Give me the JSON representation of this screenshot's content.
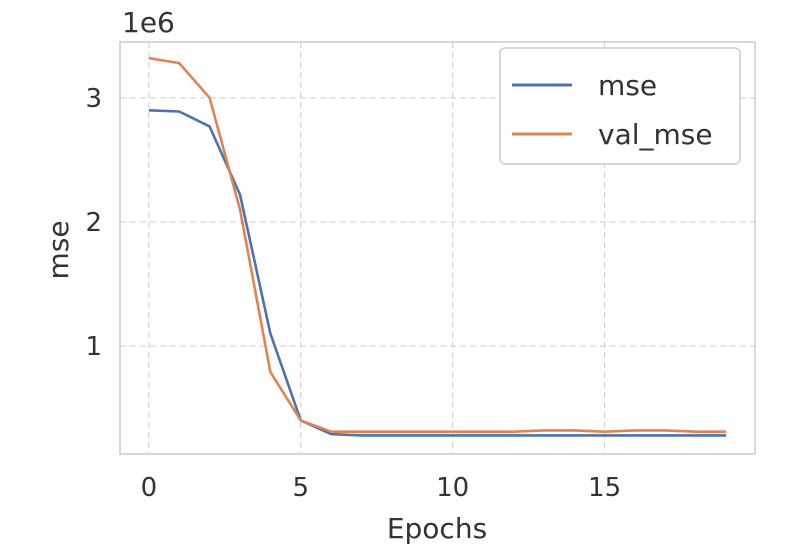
{
  "chart_data": {
    "type": "line",
    "title": "",
    "xlabel": "Epochs",
    "ylabel": "mse",
    "y_offset_label": "1e6",
    "xlim": [
      -0.95,
      19.95
    ],
    "ylim": [
      0.13,
      3.45
    ],
    "x_ticks": [
      0,
      5,
      10,
      15
    ],
    "y_ticks": [
      1,
      2,
      3
    ],
    "grid": true,
    "legend_position": "top-right",
    "x": [
      0,
      1,
      2,
      3,
      4,
      5,
      6,
      7,
      8,
      9,
      10,
      11,
      12,
      13,
      14,
      15,
      16,
      17,
      18,
      19
    ],
    "series": [
      {
        "name": "mse",
        "color": "#4c72b0",
        "values": [
          2.9,
          2.89,
          2.77,
          2.22,
          1.1,
          0.4,
          0.29,
          0.28,
          0.28,
          0.28,
          0.28,
          0.28,
          0.28,
          0.28,
          0.28,
          0.28,
          0.28,
          0.28,
          0.28,
          0.28
        ]
      },
      {
        "name": "val_mse",
        "color": "#dd8452",
        "values": [
          3.32,
          3.28,
          3.0,
          2.1,
          0.79,
          0.4,
          0.31,
          0.31,
          0.31,
          0.31,
          0.31,
          0.31,
          0.31,
          0.32,
          0.32,
          0.31,
          0.32,
          0.32,
          0.31,
          0.31
        ]
      }
    ]
  }
}
